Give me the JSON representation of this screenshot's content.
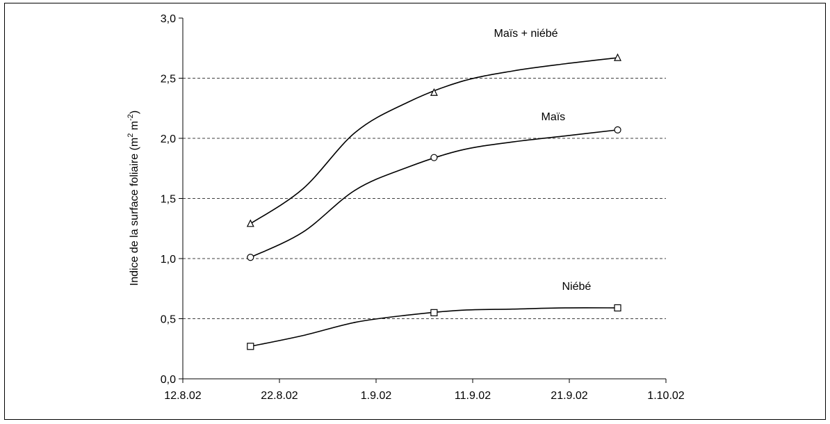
{
  "chart_data": {
    "type": "line",
    "x_dates": [
      "12.8.02",
      "22.8.02",
      "1.9.02",
      "11.9.02",
      "21.9.02",
      "1.10.02"
    ],
    "xlim_days": [
      0,
      50
    ],
    "ylim": [
      0,
      3
    ],
    "ytick_labels": [
      "0,0",
      "0,5",
      "1,0",
      "1,5",
      "2,0",
      "2,5",
      "3,0"
    ],
    "ylabel_main": "Indice de la surface foliaire (m",
    "ylabel_sup1": "2",
    "ylabel_mid": " m",
    "ylabel_sup2": "-2",
    "ylabel_end": ")",
    "grid": "horizontal dashed",
    "series": [
      {
        "name": "Maïs + niébé",
        "marker": "triangle",
        "x": [
          "19.8.02",
          "7.9.02",
          "26.9.02"
        ],
        "y": [
          1.29,
          2.38,
          2.67
        ],
        "curve_y": [
          1.29,
          1.58,
          2.05,
          2.3,
          2.47,
          2.56,
          2.62,
          2.67
        ]
      },
      {
        "name": "Maïs",
        "marker": "circle",
        "x": [
          "19.8.02",
          "7.9.02",
          "26.9.02"
        ],
        "y": [
          1.01,
          1.84,
          2.07
        ],
        "curve_y": [
          1.01,
          1.22,
          1.57,
          1.76,
          1.9,
          1.97,
          2.02,
          2.07
        ]
      },
      {
        "name": "Niébé",
        "marker": "square",
        "x": [
          "19.8.02",
          "7.9.02",
          "26.9.02"
        ],
        "y": [
          0.27,
          0.55,
          0.59
        ],
        "curve_y": [
          0.27,
          0.36,
          0.47,
          0.53,
          0.57,
          0.58,
          0.59,
          0.59
        ]
      }
    ],
    "series_label_colors": {
      "line": "#000000",
      "grid": "#000000"
    }
  }
}
